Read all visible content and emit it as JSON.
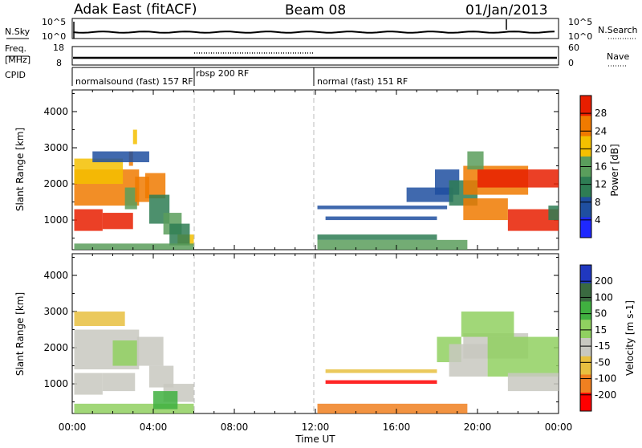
{
  "header": {
    "radar": "Adak East (fitACF)",
    "beam": "Beam 08",
    "date": "01/Jan/2013"
  },
  "noise_panel": {
    "left_label": "N.Sky",
    "left_ticks": [
      "10^5",
      "10^0"
    ],
    "right_ticks": [
      "10^5",
      "10^0"
    ],
    "right_label": "N.Search"
  },
  "freq_panel": {
    "left_label": "Freq.",
    "left_unit": "[MHz]",
    "left_ticks": [
      "18",
      "8"
    ],
    "right_ticks": [
      "60",
      "0"
    ],
    "right_label": "Nave"
  },
  "cpid": {
    "label": "CPID",
    "modes": [
      {
        "name": "normalsound (fast) 157 RF",
        "start_hour": 0
      },
      {
        "name": "rbsp 200 RF",
        "start_hour": 6
      },
      {
        "name": "normal (fast) 151 RF",
        "start_hour": 12
      }
    ]
  },
  "chart_data": [
    {
      "type": "heatmap",
      "panel": "power",
      "ylabel": "Slant Range [km]",
      "xlabel": "",
      "xlim_hours": [
        0,
        24
      ],
      "ylim": [
        180,
        4600
      ],
      "yticks": [
        1000,
        2000,
        3000,
        4000
      ],
      "colorbar": {
        "label": "Power [dB]",
        "ticks": [
          "4",
          "8",
          "12",
          "16",
          "20",
          "24",
          "28"
        ],
        "colors": [
          "#1e28ff",
          "#1f4fa0",
          "#2e7d54",
          "#5a9e5c",
          "#f4c000",
          "#f07a00",
          "#e81e00"
        ]
      },
      "vertical_lines_hours": [
        6,
        12
      ]
    },
    {
      "type": "heatmap",
      "panel": "velocity",
      "ylabel": "Slant Range [km]",
      "xlabel": "Time UT",
      "xlim_hours": [
        0,
        24
      ],
      "xticks": [
        "00:00",
        "04:00",
        "08:00",
        "12:00",
        "16:00",
        "20:00",
        "00:00"
      ],
      "ylim": [
        180,
        4600
      ],
      "yticks": [
        1000,
        2000,
        3000,
        4000
      ],
      "colorbar": {
        "label": "Velocity [m s-1]",
        "ticks": [
          "200",
          "100",
          "50",
          "15",
          "-15",
          "-50",
          "-100",
          "-200"
        ],
        "colors": [
          "#2038c0",
          "#3a6a40",
          "#40b040",
          "#90d060",
          "#c8c8c0",
          "#e8c040",
          "#f08020",
          "#ff0000"
        ]
      },
      "vertical_lines_hours": [
        6,
        12
      ]
    }
  ],
  "time_series": {
    "nsky_level": 0.32,
    "freq_mhz_before_6": 10.5,
    "freq_mhz_after_6": 10.5,
    "nave_between_6_and_12": 30
  }
}
